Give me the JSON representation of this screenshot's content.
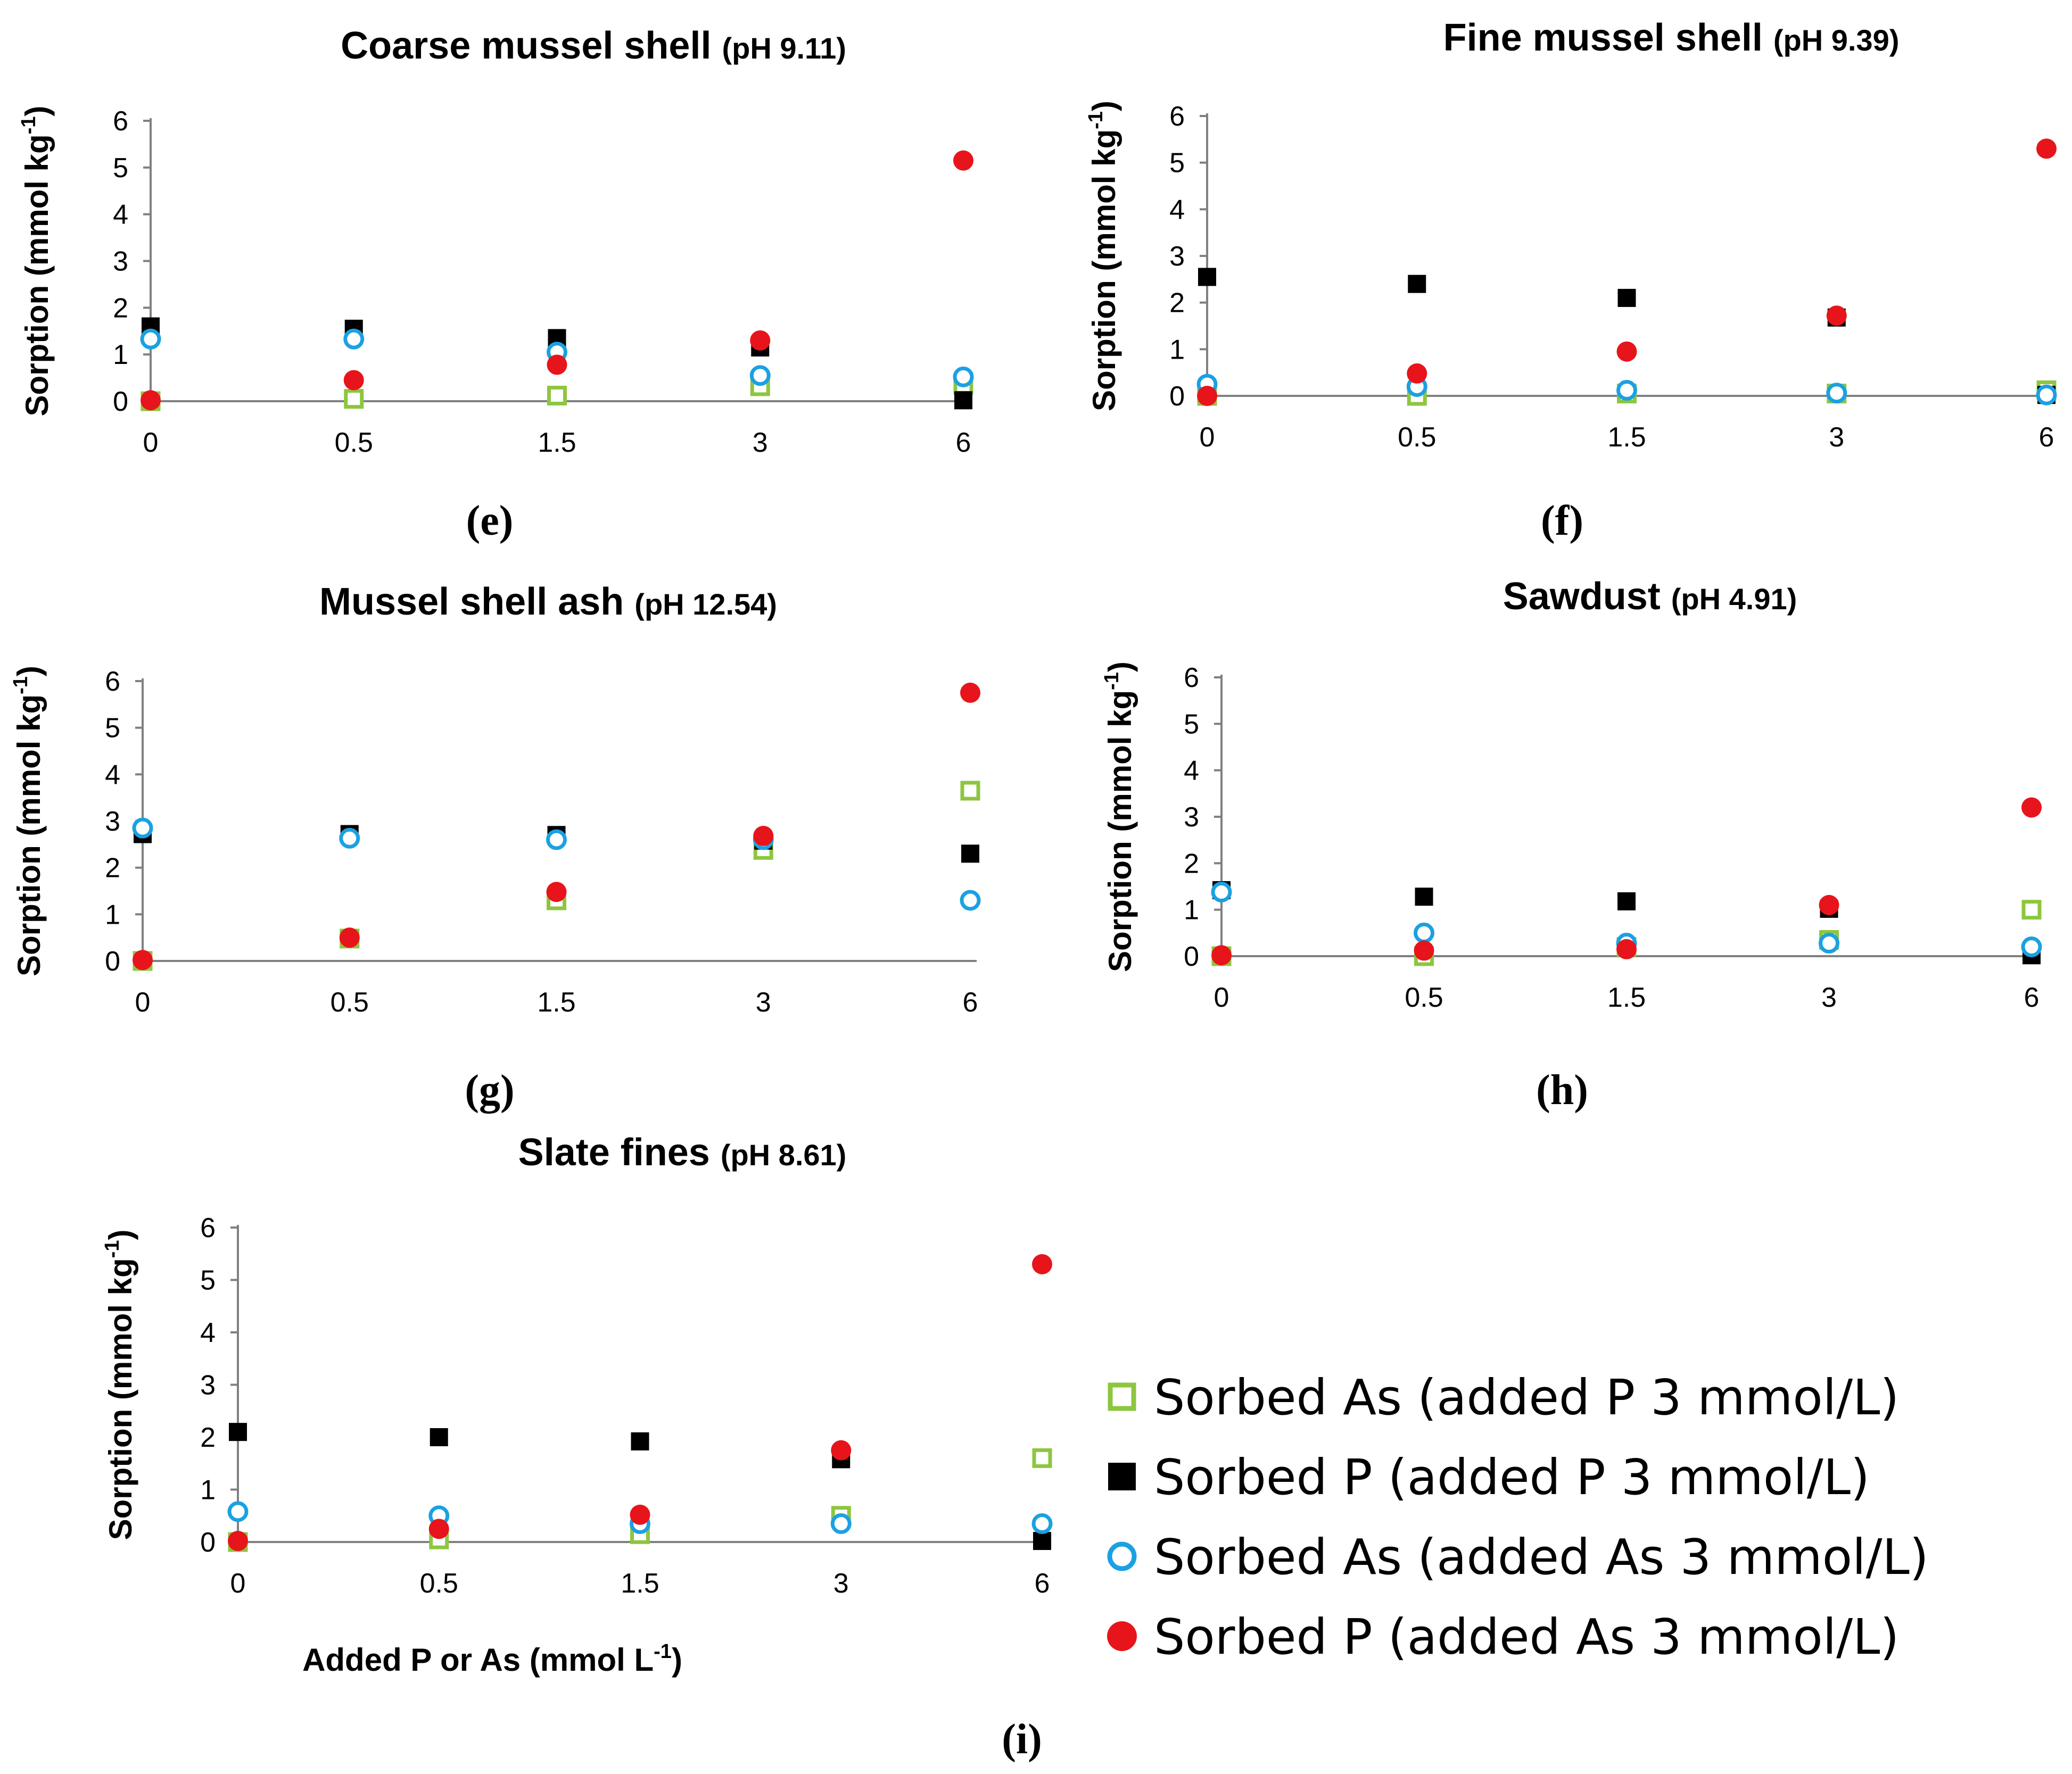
{
  "chart_data": [
    {
      "panel": "(e)",
      "type": "scatter",
      "title": "Coarse mussel shell",
      "title_ph": "(pH 9.11)",
      "ylabel": "Sorption (mmol kg",
      "ylabel_sup": "-1",
      "ylabel_close": ")",
      "categories": [
        "0",
        "0.5",
        "1.5",
        "3",
        "6"
      ],
      "yticks": [
        "0",
        "1",
        "2",
        "3",
        "4",
        "5",
        "6"
      ],
      "ylim": [
        0,
        6
      ],
      "series": [
        {
          "name": "Sorbed As (added P 3 mmol/L)",
          "values": [
            0,
            0.05,
            0.12,
            0.32,
            0.35
          ]
        },
        {
          "name": "Sorbed P (added P 3 mmol/L)",
          "values": [
            1.6,
            1.55,
            1.35,
            1.15,
            0.02
          ]
        },
        {
          "name": "Sorbed As (added As 3 mmol/L)",
          "values": [
            1.33,
            1.33,
            1.05,
            0.55,
            0.52
          ]
        },
        {
          "name": "Sorbed P (added As 3 mmol/L)",
          "values": [
            0.02,
            0.45,
            0.78,
            1.3,
            5.15
          ]
        }
      ]
    },
    {
      "panel": "(f)",
      "type": "scatter",
      "title": "Fine mussel shell",
      "title_ph": "(pH 9.39)",
      "ylabel": "Sorption (mmol kg",
      "ylabel_sup": "-1",
      "ylabel_close": ")",
      "categories": [
        "0",
        "0.5",
        "1.5",
        "3",
        "6"
      ],
      "yticks": [
        "0",
        "1",
        "2",
        "3",
        "4",
        "5",
        "6"
      ],
      "ylim": [
        0,
        6
      ],
      "series": [
        {
          "name": "Sorbed As (added P 3 mmol/L)",
          "values": [
            0,
            0.0,
            0.05,
            0.05,
            0.12
          ]
        },
        {
          "name": "Sorbed P (added P 3 mmol/L)",
          "values": [
            2.55,
            2.4,
            2.1,
            1.68,
            0.02
          ]
        },
        {
          "name": "Sorbed As (added As 3 mmol/L)",
          "values": [
            0.25,
            0.2,
            0.12,
            0.06,
            0.02
          ]
        },
        {
          "name": "Sorbed P (added As 3 mmol/L)",
          "values": [
            0.0,
            0.48,
            0.95,
            1.72,
            5.3
          ]
        }
      ]
    },
    {
      "panel": "(g)",
      "type": "scatter",
      "title": "Mussel shell ash",
      "title_ph": "(pH 12.54)",
      "ylabel": "Sorption (mmol kg",
      "ylabel_sup": "-1",
      "ylabel_close": ")",
      "categories": [
        "0",
        "0.5",
        "1.5",
        "3",
        "6"
      ],
      "yticks": [
        "0",
        "1",
        "2",
        "3",
        "4",
        "5",
        "6"
      ],
      "ylim": [
        0,
        6
      ],
      "series": [
        {
          "name": "Sorbed As (added P 3 mmol/L)",
          "values": [
            0,
            0.48,
            1.3,
            2.38,
            3.65
          ]
        },
        {
          "name": "Sorbed P (added P 3 mmol/L)",
          "values": [
            2.72,
            2.72,
            2.7,
            2.58,
            2.3
          ]
        },
        {
          "name": "Sorbed As (added As 3 mmol/L)",
          "values": [
            2.85,
            2.63,
            2.6,
            2.6,
            1.3
          ]
        },
        {
          "name": "Sorbed P (added As 3 mmol/L)",
          "values": [
            0.02,
            0.5,
            1.48,
            2.68,
            5.75
          ]
        }
      ]
    },
    {
      "panel": "(h)",
      "type": "scatter",
      "title": "Sawdust",
      "title_ph": "(pH 4.91)",
      "ylabel": "Sorption (mmol kg",
      "ylabel_sup": "-1",
      "ylabel_close": ")",
      "categories": [
        "0",
        "0.5",
        "1.5",
        "3",
        "6"
      ],
      "yticks": [
        "0",
        "1",
        "2",
        "3",
        "4",
        "5",
        "6"
      ],
      "ylim": [
        0,
        6
      ],
      "series": [
        {
          "name": "Sorbed As (added P 3 mmol/L)",
          "values": [
            0,
            0.0,
            0.2,
            0.35,
            1.0
          ]
        },
        {
          "name": "Sorbed P (added P 3 mmol/L)",
          "values": [
            1.42,
            1.28,
            1.18,
            1.02,
            0.02
          ]
        },
        {
          "name": "Sorbed As (added As 3 mmol/L)",
          "values": [
            1.38,
            0.5,
            0.28,
            0.28,
            0.2
          ]
        },
        {
          "name": "Sorbed P (added As 3 mmol/L)",
          "values": [
            0.02,
            0.12,
            0.15,
            1.1,
            3.2
          ]
        }
      ]
    },
    {
      "panel": "(i)",
      "type": "scatter",
      "title": "Slate fines",
      "title_ph": "(pH 8.61)",
      "ylabel": "Sorption (mmol kg",
      "ylabel_sup": "-1",
      "ylabel_close": ")",
      "xlabel": "Added P or As (mmol L",
      "xlabel_sup": "-1",
      "xlabel_close": ")",
      "categories": [
        "0",
        "0.5",
        "1.5",
        "3",
        "6"
      ],
      "yticks": [
        "0",
        "1",
        "2",
        "3",
        "4",
        "5",
        "6"
      ],
      "ylim": [
        0,
        6
      ],
      "series": [
        {
          "name": "Sorbed As (added P 3 mmol/L)",
          "values": [
            0,
            0.05,
            0.15,
            0.5,
            1.6
          ]
        },
        {
          "name": "Sorbed P (added P 3 mmol/L)",
          "values": [
            2.1,
            2.0,
            1.92,
            1.58,
            0.02
          ]
        },
        {
          "name": "Sorbed As (added As 3 mmol/L)",
          "values": [
            0.58,
            0.5,
            0.35,
            0.35,
            0.35
          ]
        },
        {
          "name": "Sorbed P (added As 3 mmol/L)",
          "values": [
            0.02,
            0.25,
            0.52,
            1.75,
            5.3
          ]
        }
      ]
    }
  ],
  "legend": [
    {
      "label": "Sorbed As (added P 3 mmol/L)",
      "marker": "open-square",
      "color": "#8DC63F"
    },
    {
      "label": "Sorbed P (added P 3 mmol/L)",
      "marker": "filled-square",
      "color": "#000000"
    },
    {
      "label": "Sorbed As (added As 3 mmol/L)",
      "marker": "open-circle",
      "color": "#1BA1E2"
    },
    {
      "label": "Sorbed P (added As 3 mmol/L)",
      "marker": "filled-circle",
      "color": "#E8141B"
    }
  ],
  "colors": {
    "green": "#8DC63F",
    "black": "#000000",
    "blue": "#1BA1E2",
    "red": "#E8141B",
    "axis": "#808080"
  }
}
